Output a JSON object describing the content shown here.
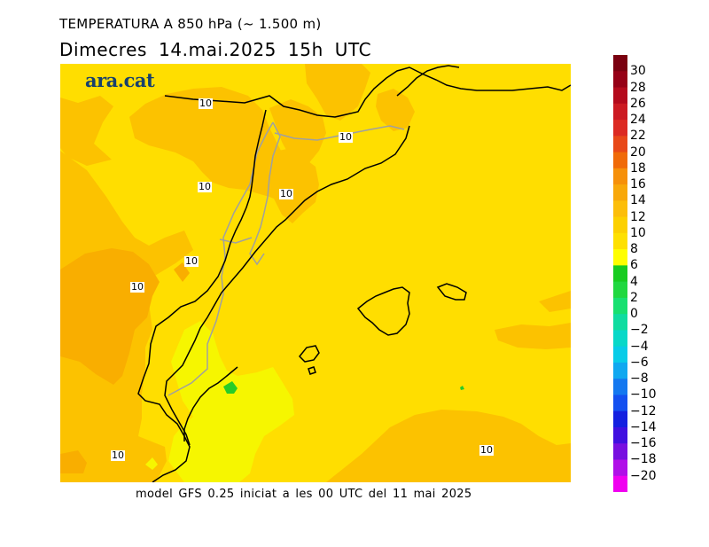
{
  "header": {
    "title": "TEMPERATURA A 850 hPa (~ 1.500 m)",
    "subtitle": "Dimecres   14.mai.2025  15h UTC"
  },
  "logo": {
    "text": "ara.cat",
    "color": "#17406e"
  },
  "footer": {
    "text": "model GFS 0.25 iniciat a les 00 UTC del 11 mai 2025"
  },
  "colorbar": {
    "labels": [
      "30",
      "28",
      "26",
      "24",
      "22",
      "20",
      "18",
      "16",
      "14",
      "12",
      "10",
      "8",
      "6",
      "4",
      "2",
      "0",
      "−2",
      "−4",
      "−6",
      "−8",
      "−10",
      "−12",
      "−14",
      "−16",
      "−18",
      "−20"
    ],
    "colors": [
      "#7a0010",
      "#960016",
      "#b40a1c",
      "#cc1a22",
      "#dc2a22",
      "#e84818",
      "#f06a08",
      "#f6900a",
      "#f8a80a",
      "#fcbe0a",
      "#fcd000",
      "#fee000",
      "#fefe00",
      "#18cc20",
      "#20d840",
      "#18e070",
      "#10dca0",
      "#08d8c8",
      "#08cce8",
      "#10a8f0",
      "#1478f0",
      "#1450f0",
      "#1420e0",
      "#4010e0",
      "#7810e0",
      "#b010e8",
      "#f000f0"
    ]
  },
  "map": {
    "contour_label": "10",
    "colors": {
      "band_8_10": "#ffde00",
      "band_10_12": "#fcc200",
      "band_12_14": "#f9ae00",
      "band_6_8": "#f6f600",
      "band_4_6": "#28cc28",
      "coastline": "#000000",
      "border": "#a0a0a0"
    }
  }
}
